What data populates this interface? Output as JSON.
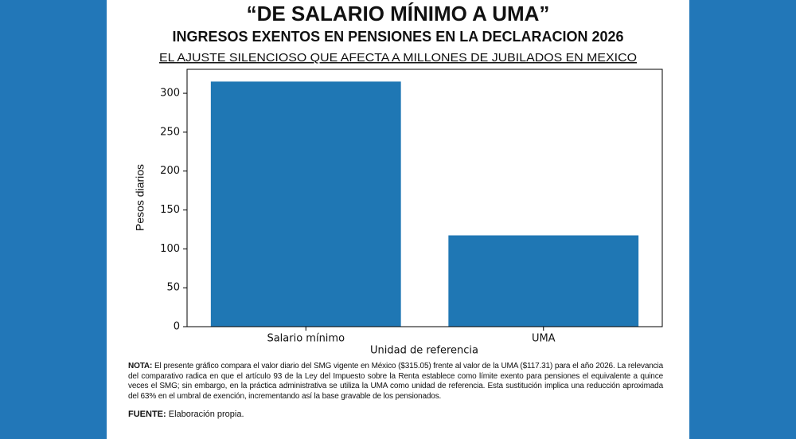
{
  "chart_data": {
    "type": "bar",
    "title": "“DE SALARIO MÍNIMO A UMA”",
    "subtitle": "INGRESOS EXENTOS EN PENSIONES EN LA DECLARACION 2026",
    "caption": "EL AJUSTE SILENCIOSO QUE AFECTA A MILLONES DE JUBILADOS EN MEXICO",
    "categories": [
      "Salario mínimo",
      "UMA"
    ],
    "values": [
      315.05,
      117.31
    ],
    "color": "#1f77b4",
    "xlabel": "Unidad de referencia",
    "ylabel": "Pesos diarios",
    "ylim": [
      0,
      330.8
    ],
    "yticks": [
      0,
      50,
      100,
      150,
      200,
      250,
      300
    ],
    "grid": false
  },
  "note": {
    "label": "NOTA:",
    "text": "El presente gráfico compara el valor diario del SMG vigente en México ($315.05) frente al valor de la UMA ($117.31) para el año 2026. La relevancia del comparativo radica en que el artículo 93 de la Ley del Impuesto sobre la Renta establece como límite exento para pensiones el equivalente a quince veces el SMG; sin embargo, en la práctica administrativa se utiliza la UMA como unidad de referencia. Esta sustitución implica una reducción aproximada del 63% en el umbral de exención, incrementando así la base gravable de los pensionados."
  },
  "source": {
    "label": "FUENTE:",
    "text": "Elaboración propia."
  }
}
